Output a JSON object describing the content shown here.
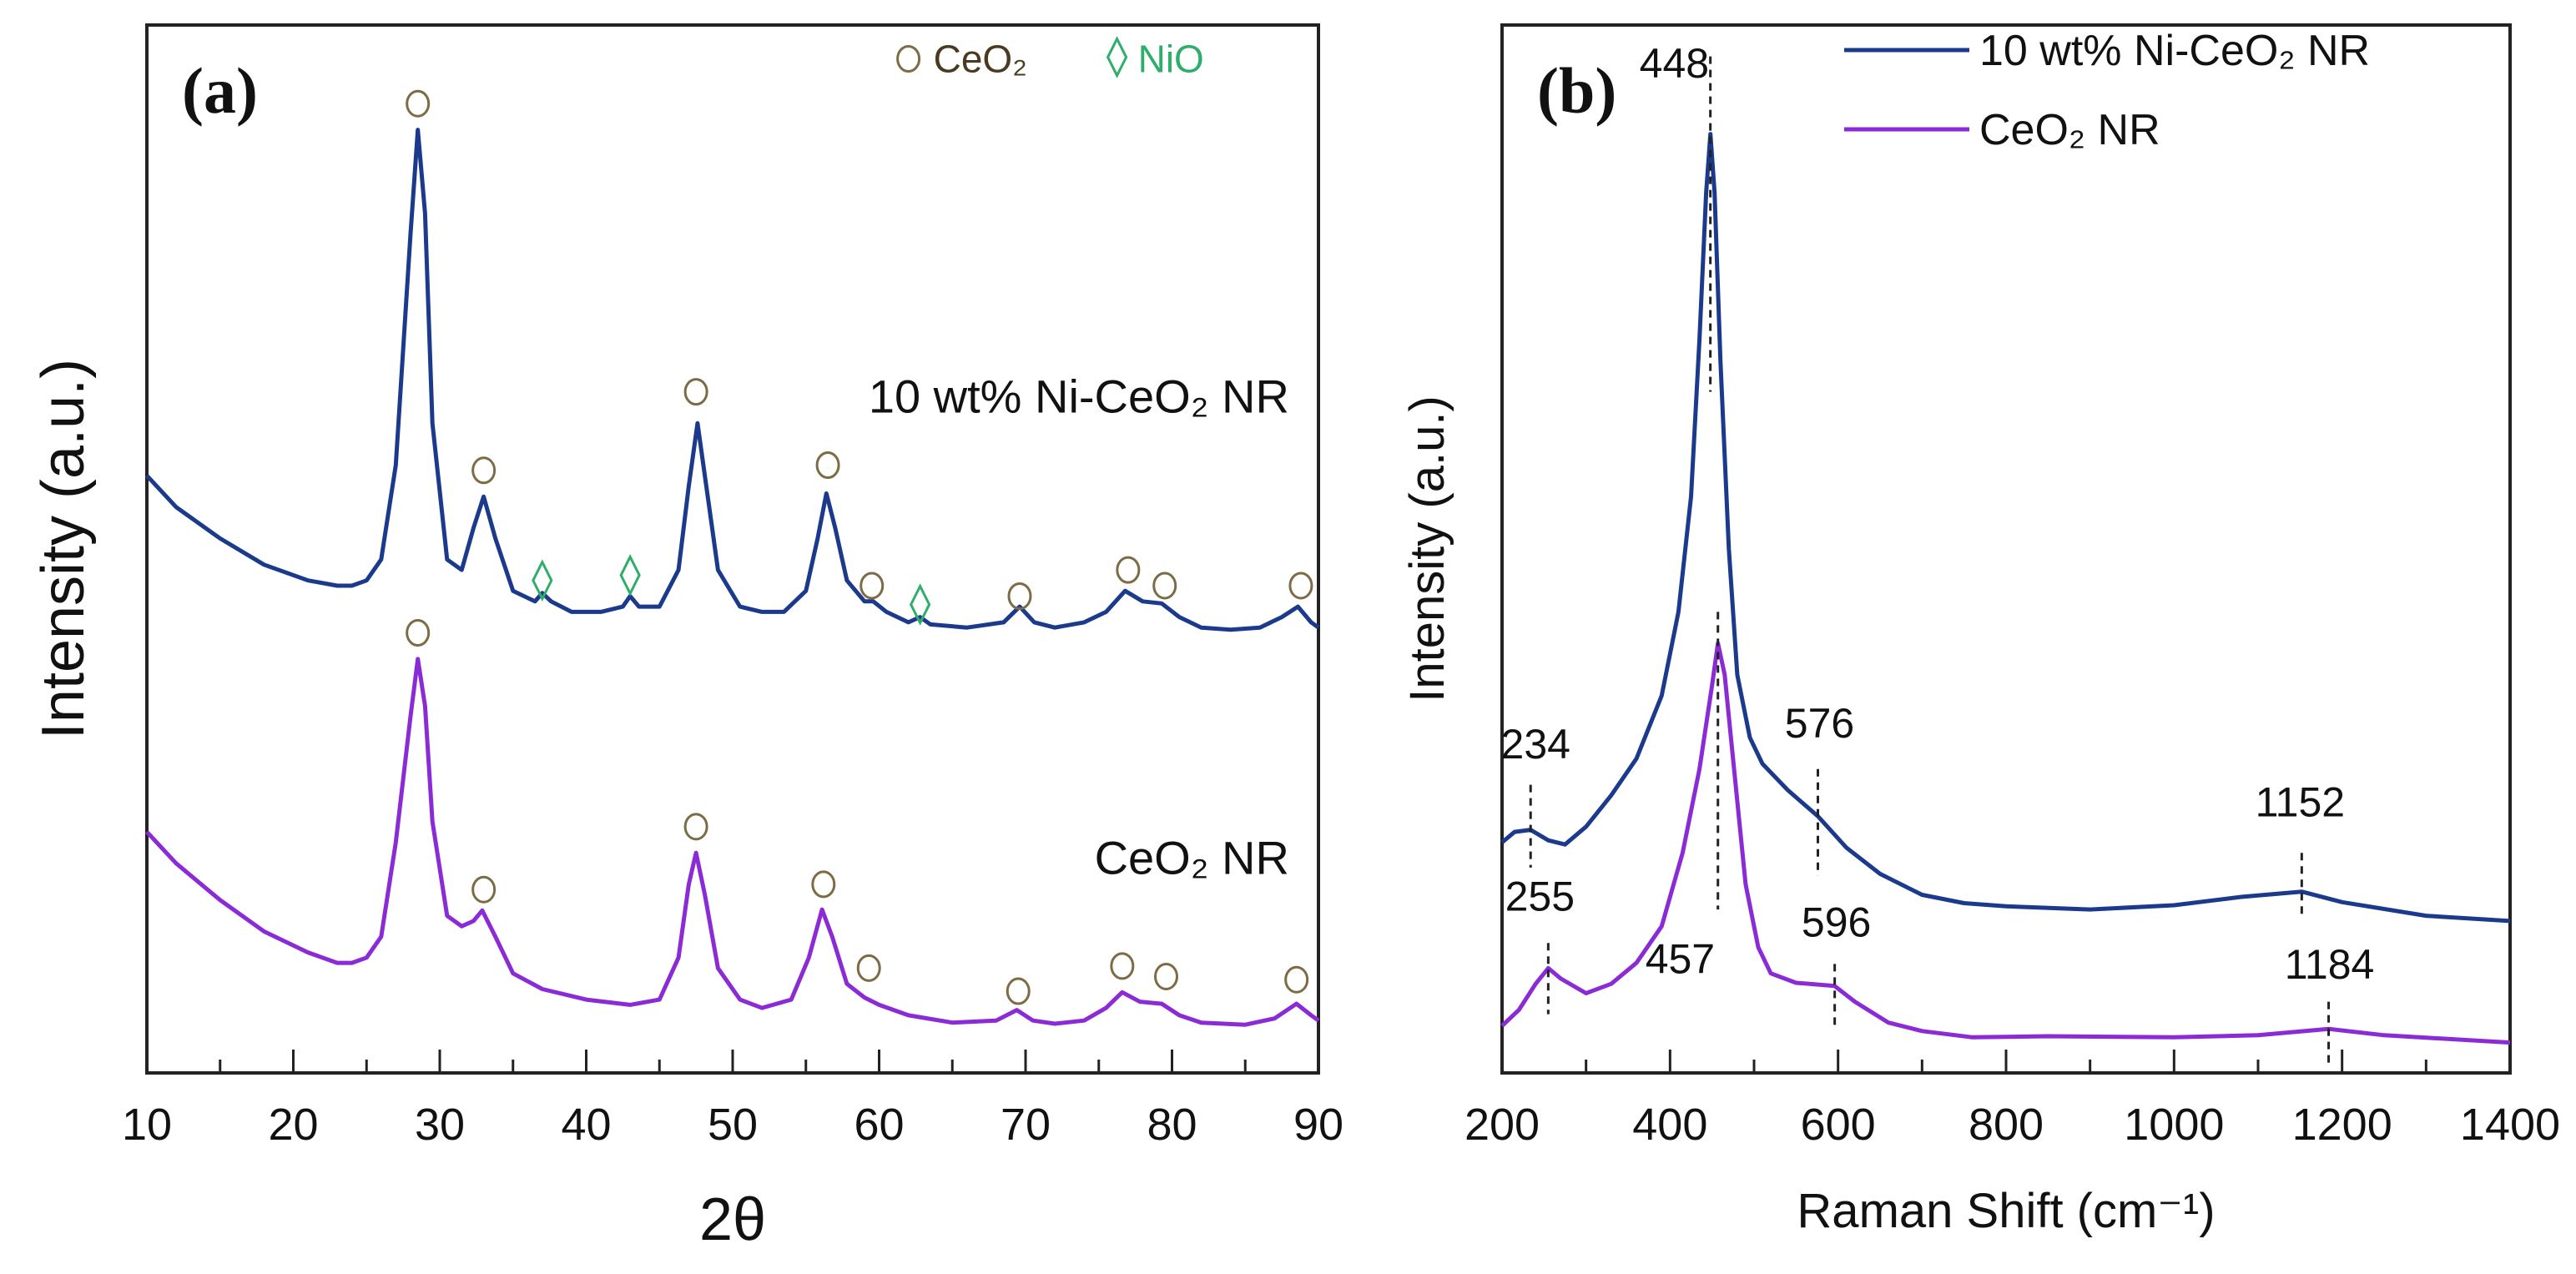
{
  "chart_data": [
    {
      "type": "line",
      "panel_label": "(a)",
      "xlabel": "2θ",
      "ylabel": "Intensity (a.u.)",
      "xlim": [
        10,
        90
      ],
      "ylim": [
        0,
        100
      ],
      "xticks": [
        10,
        20,
        30,
        40,
        50,
        60,
        70,
        80,
        90
      ],
      "xtick_labels": [
        "10",
        "20",
        "30",
        "40",
        "50",
        "60",
        "70",
        "80",
        "90"
      ],
      "minor_xticks": [
        15,
        25,
        35,
        45,
        55,
        65,
        75,
        85
      ],
      "legend": {
        "placement": "top-right",
        "entries": [
          {
            "symbol": "circle",
            "label": "CeO₂",
            "color": "#7d6b45"
          },
          {
            "symbol": "diamond",
            "label": "NiO",
            "color": "#2fae6a"
          }
        ]
      },
      "series": [
        {
          "name": "10 wt% Ni-CeO₂ NR",
          "color": "#1c3a8c",
          "points": [
            [
              10,
              57
            ],
            [
              12,
              54
            ],
            [
              15,
              51
            ],
            [
              18,
              48.5
            ],
            [
              21,
              47
            ],
            [
              23,
              46.5
            ],
            [
              24,
              46.5
            ],
            [
              25,
              47
            ],
            [
              26,
              49
            ],
            [
              27,
              58
            ],
            [
              28,
              80
            ],
            [
              28.5,
              90
            ],
            [
              29,
              82
            ],
            [
              29.5,
              62
            ],
            [
              30.5,
              49
            ],
            [
              31.5,
              48
            ],
            [
              32.3,
              52
            ],
            [
              33,
              55
            ],
            [
              33.8,
              51
            ],
            [
              35,
              46
            ],
            [
              36.5,
              45
            ],
            [
              37,
              45.8
            ],
            [
              37.6,
              45
            ],
            [
              39,
              44
            ],
            [
              41,
              44
            ],
            [
              42.5,
              44.5
            ],
            [
              43,
              45.5
            ],
            [
              43.6,
              44.5
            ],
            [
              45,
              44.5
            ],
            [
              46.3,
              48
            ],
            [
              47,
              56
            ],
            [
              47.6,
              62
            ],
            [
              48.2,
              56
            ],
            [
              49,
              48
            ],
            [
              50.5,
              44.5
            ],
            [
              52,
              44
            ],
            [
              53.5,
              44
            ],
            [
              55,
              46
            ],
            [
              55.8,
              51
            ],
            [
              56.4,
              55.3
            ],
            [
              57,
              52
            ],
            [
              57.8,
              47
            ],
            [
              59,
              45
            ],
            [
              59.6,
              45
            ],
            [
              60.5,
              44
            ],
            [
              62,
              43
            ],
            [
              62.8,
              43.5
            ],
            [
              63.5,
              42.8
            ],
            [
              66,
              42.5
            ],
            [
              68.5,
              43
            ],
            [
              69.6,
              44.5
            ],
            [
              70.6,
              43
            ],
            [
              72,
              42.5
            ],
            [
              74,
              43
            ],
            [
              75.5,
              44
            ],
            [
              76.8,
              46
            ],
            [
              78,
              45
            ],
            [
              79.3,
              44.8
            ],
            [
              80.5,
              43.5
            ],
            [
              82,
              42.5
            ],
            [
              84,
              42.3
            ],
            [
              86,
              42.5
            ],
            [
              87.5,
              43.5
            ],
            [
              88.6,
              44.5
            ],
            [
              89.5,
              43
            ],
            [
              90,
              42.5
            ]
          ],
          "ceo2_markers": [
            [
              28.5,
              92.5
            ],
            [
              33,
              57.5
            ],
            [
              47.5,
              65
            ],
            [
              56.5,
              58
            ],
            [
              59.5,
              46.5
            ],
            [
              69.6,
              45.5
            ],
            [
              77,
              48
            ],
            [
              79.5,
              46.5
            ],
            [
              88.8,
              46.5
            ]
          ],
          "nio_markers": [
            [
              37,
              47
            ],
            [
              43,
              47.5
            ],
            [
              62.8,
              44.7
            ]
          ]
        },
        {
          "name": "CeO₂ NR",
          "color": "#8a2bd6",
          "points": [
            [
              10,
              23
            ],
            [
              12,
              20
            ],
            [
              15,
              16.5
            ],
            [
              18,
              13.5
            ],
            [
              21,
              11.5
            ],
            [
              23,
              10.5
            ],
            [
              24,
              10.5
            ],
            [
              25,
              11
            ],
            [
              26,
              13
            ],
            [
              27,
              22
            ],
            [
              28,
              34
            ],
            [
              28.5,
              39.5
            ],
            [
              29,
              35
            ],
            [
              29.5,
              24
            ],
            [
              30.5,
              15
            ],
            [
              31.5,
              14
            ],
            [
              32.3,
              14.5
            ],
            [
              32.9,
              15.5
            ],
            [
              33.8,
              13
            ],
            [
              35,
              9.5
            ],
            [
              37,
              8
            ],
            [
              40,
              7
            ],
            [
              43,
              6.5
            ],
            [
              45,
              7
            ],
            [
              46.3,
              11
            ],
            [
              47,
              18
            ],
            [
              47.5,
              21
            ],
            [
              48.1,
              17
            ],
            [
              49,
              10
            ],
            [
              50.5,
              7
            ],
            [
              52,
              6.2
            ],
            [
              54,
              7
            ],
            [
              55.2,
              11
            ],
            [
              56.1,
              15.6
            ],
            [
              56.8,
              13
            ],
            [
              57.8,
              8.5
            ],
            [
              59,
              7.2
            ],
            [
              60,
              6.5
            ],
            [
              62,
              5.5
            ],
            [
              65,
              4.8
            ],
            [
              68,
              5
            ],
            [
              69.4,
              6
            ],
            [
              70.5,
              5
            ],
            [
              72,
              4.7
            ],
            [
              74,
              5
            ],
            [
              75.5,
              6.2
            ],
            [
              76.6,
              7.7
            ],
            [
              77.8,
              6.8
            ],
            [
              79.3,
              6.6
            ],
            [
              80.5,
              5.5
            ],
            [
              82,
              4.8
            ],
            [
              85,
              4.6
            ],
            [
              87,
              5.2
            ],
            [
              88.5,
              6.6
            ],
            [
              89.5,
              5.5
            ],
            [
              90,
              5
            ]
          ],
          "ceo2_markers": [
            [
              28.5,
              42
            ],
            [
              33,
              17.5
            ],
            [
              47.5,
              23.5
            ],
            [
              56.2,
              18
            ],
            [
              59.3,
              10
            ],
            [
              69.5,
              7.8
            ],
            [
              76.6,
              10.2
            ],
            [
              79.6,
              9.2
            ],
            [
              88.5,
              8.9
            ]
          ],
          "nio_markers": []
        }
      ],
      "annotations": [
        {
          "text": "10 wt% Ni-CeO₂ NR",
          "x": 88,
          "y": 63
        },
        {
          "text": "CeO₂ NR",
          "x": 88,
          "y": 19
        }
      ]
    },
    {
      "type": "line",
      "panel_label": "(b)",
      "xlabel": "Raman Shift (cm⁻¹)",
      "ylabel": "Intensity (a.u.)",
      "xlim": [
        200,
        1400
      ],
      "ylim": [
        0,
        100
      ],
      "xticks": [
        200,
        400,
        600,
        800,
        1000,
        1200,
        1400
      ],
      "xtick_labels": [
        "200",
        "400",
        "600",
        "800",
        "1000",
        "1200",
        "1400"
      ],
      "minor_xticks": [
        300,
        500,
        700,
        900,
        1100,
        1300
      ],
      "legend": {
        "placement": "top-right"
      },
      "series": [
        {
          "name": "10 wt% Ni-CeO₂ NR",
          "color": "#1c3a8c",
          "points": [
            [
              200,
              22
            ],
            [
              215,
              23
            ],
            [
              234,
              23.2
            ],
            [
              255,
              22.2
            ],
            [
              275,
              21.8
            ],
            [
              300,
              23.5
            ],
            [
              330,
              26.5
            ],
            [
              360,
              30
            ],
            [
              390,
              36
            ],
            [
              410,
              44
            ],
            [
              425,
              55
            ],
            [
              435,
              70
            ],
            [
              443,
              84
            ],
            [
              448,
              89.6
            ],
            [
              453,
              84
            ],
            [
              460,
              68
            ],
            [
              470,
              50
            ],
            [
              480,
              38
            ],
            [
              495,
              32
            ],
            [
              510,
              29.5
            ],
            [
              540,
              27
            ],
            [
              576,
              24.5
            ],
            [
              610,
              21.5
            ],
            [
              650,
              19
            ],
            [
              700,
              17
            ],
            [
              750,
              16.2
            ],
            [
              800,
              15.9
            ],
            [
              900,
              15.6
            ],
            [
              1000,
              16
            ],
            [
              1080,
              16.8
            ],
            [
              1152,
              17.3
            ],
            [
              1200,
              16.3
            ],
            [
              1300,
              15
            ],
            [
              1400,
              14.5
            ]
          ]
        },
        {
          "name": "CeO₂ NR",
          "color": "#8a2bd6",
          "points": [
            [
              200,
              4.5
            ],
            [
              220,
              6
            ],
            [
              240,
              8.5
            ],
            [
              255,
              10
            ],
            [
              270,
              9
            ],
            [
              300,
              7.6
            ],
            [
              330,
              8.5
            ],
            [
              360,
              10.5
            ],
            [
              390,
              14
            ],
            [
              415,
              21
            ],
            [
              435,
              29
            ],
            [
              450,
              37
            ],
            [
              457,
              41
            ],
            [
              465,
              38
            ],
            [
              475,
              30
            ],
            [
              490,
              18
            ],
            [
              505,
              12
            ],
            [
              520,
              9.5
            ],
            [
              550,
              8.6
            ],
            [
              596,
              8.3
            ],
            [
              620,
              6.8
            ],
            [
              660,
              4.8
            ],
            [
              700,
              4
            ],
            [
              760,
              3.4
            ],
            [
              850,
              3.5
            ],
            [
              1000,
              3.4
            ],
            [
              1100,
              3.6
            ],
            [
              1184,
              4.2
            ],
            [
              1250,
              3.6
            ],
            [
              1400,
              2.9
            ]
          ]
        }
      ],
      "peak_annotations": [
        {
          "text": "448",
          "x": 448,
          "line": [
            97,
            65
          ],
          "label_x": 405,
          "label_y": 95
        },
        {
          "text": "234",
          "x": 234,
          "line": [
            27.5,
            19.6
          ],
          "label_x": 240,
          "label_y": 30
        },
        {
          "text": "576",
          "x": 576,
          "line": [
            29,
            18.8
          ],
          "label_x": 578,
          "label_y": 32
        },
        {
          "text": "1152",
          "x": 1152,
          "line": [
            21,
            14.8
          ],
          "label_x": 1150,
          "label_y": 24.5
        },
        {
          "text": "255",
          "x": 255,
          "line": [
            12.4,
            5.6
          ],
          "label_x": 245,
          "label_y": 15.5
        },
        {
          "text": "457",
          "x": 457,
          "line": [
            44,
            15.6
          ],
          "label_x": 412,
          "label_y": 9.5
        },
        {
          "text": "596",
          "x": 596,
          "line": [
            10.4,
            4.5
          ],
          "label_x": 598,
          "label_y": 13
        },
        {
          "text": "1184",
          "x": 1184,
          "line": [
            6.8,
            0.5
          ],
          "label_x": 1185,
          "label_y": 9
        }
      ]
    }
  ]
}
